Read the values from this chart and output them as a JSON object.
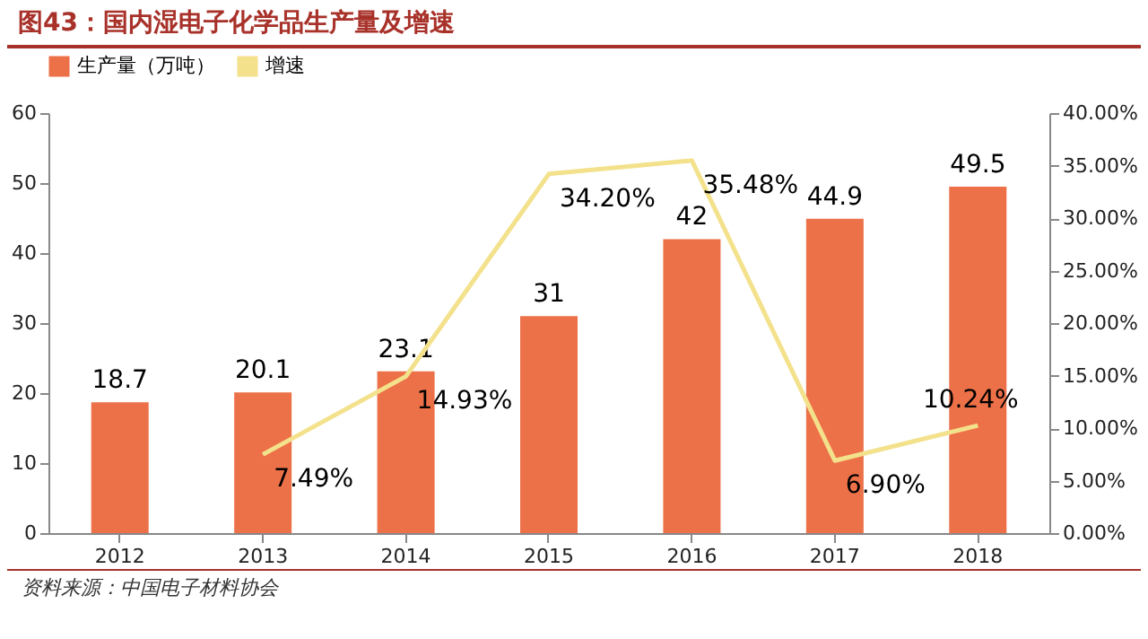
{
  "chart_data": {
    "type": "bar",
    "title": "图43：国内湿电子化学品生产量及增速",
    "annotations": [
      "资料来源：中国电子材料协会"
    ],
    "categories": [
      "2012",
      "2013",
      "2014",
      "2015",
      "2016",
      "2017",
      "2018"
    ],
    "series": [
      {
        "name": "生产量（万吨）",
        "color": "#ed7148",
        "values": [
          18.7,
          20.1,
          23.1,
          31,
          42,
          44.9,
          49.5
        ]
      },
      {
        "name": "增速",
        "type": "line",
        "axis": "y2",
        "color": "#f3e18c",
        "values": [
          null,
          7.49,
          14.93,
          34.2,
          35.48,
          6.9,
          10.24
        ],
        "value_labels": [
          null,
          "7.49%",
          "14.93%",
          "34.20%",
          "35.48%",
          "6.90%",
          "10.24%"
        ]
      }
    ],
    "data_labels": true,
    "legend": "top",
    "grid": false,
    "ylim": [
      0,
      60
    ],
    "yticks": [
      0,
      10,
      20,
      30,
      40,
      50,
      60
    ],
    "y2lim": [
      0,
      40
    ],
    "y2ticks": [
      {
        "value": 0,
        "label": "0.00%"
      },
      {
        "value": 5,
        "label": "5.00%"
      },
      {
        "value": 10,
        "label": "10.00%"
      },
      {
        "value": 15,
        "label": "15.00%"
      },
      {
        "value": 20,
        "label": "20.00%"
      },
      {
        "value": 25,
        "label": "25.00%"
      },
      {
        "value": 30,
        "label": "30.00%"
      },
      {
        "value": 35,
        "label": "35.00%"
      },
      {
        "value": 40,
        "label": "40.00%"
      }
    ]
  }
}
